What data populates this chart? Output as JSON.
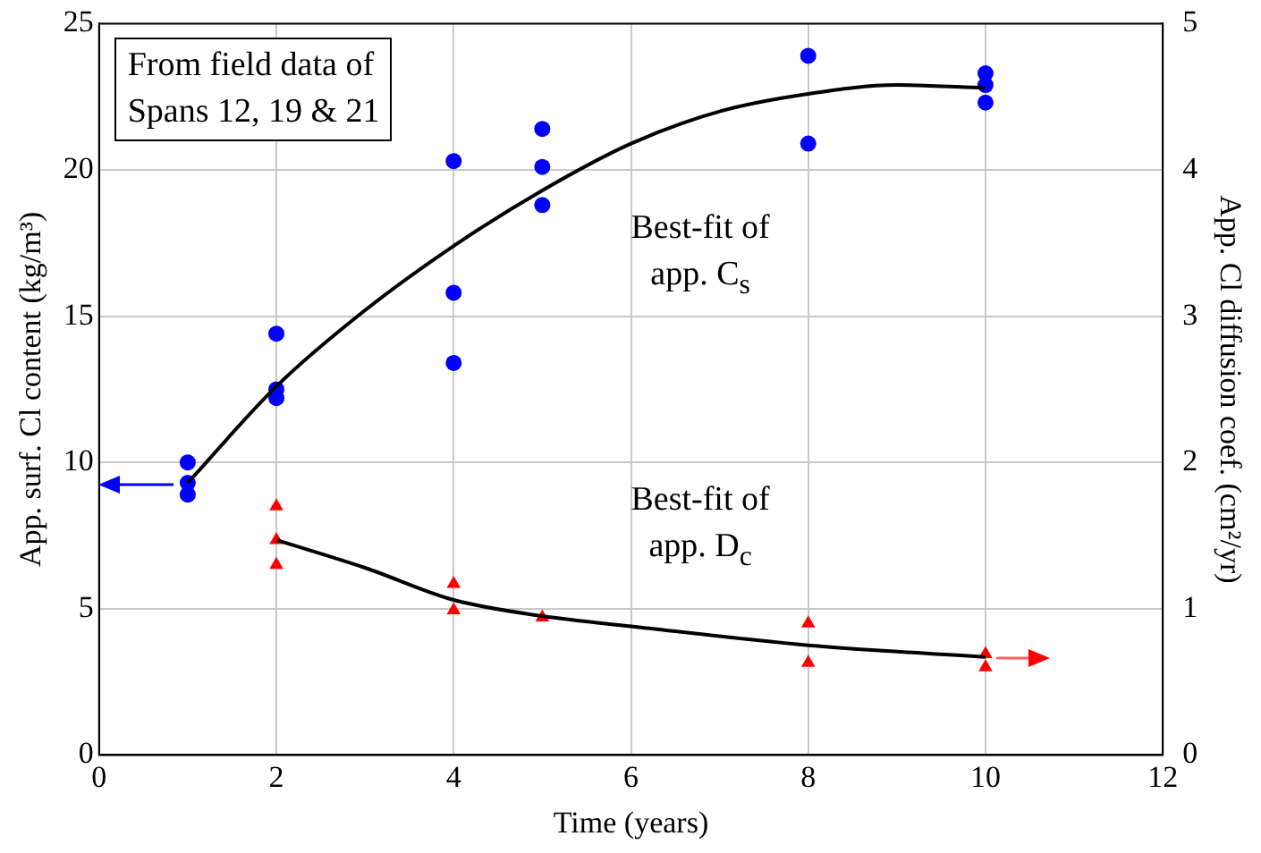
{
  "chart_data": {
    "type": "scatter",
    "xlabel": "Time (years)",
    "ylabel": "App. surf. Cl content (kg/m³)",
    "y2label": "App. Cl diffusion coef. (cm²/yr)",
    "xlim": [
      0,
      12
    ],
    "xticks": [
      0,
      2,
      4,
      6,
      8,
      10,
      12
    ],
    "ylim": [
      0,
      25
    ],
    "yticks": [
      0,
      5,
      10,
      15,
      20,
      25
    ],
    "y2lim": [
      0,
      5
    ],
    "y2ticks": [
      0,
      1,
      2,
      3,
      4,
      5
    ],
    "grid": true,
    "legend": false,
    "annotations": [
      "From field data of\nSpans 12, 19 & 21",
      "Best-fit of\napp. C$_{s}$",
      "Best-fit of\napp. D$_{c}$"
    ],
    "series": [
      {
        "color": "#0000ff",
        "marker": "circle",
        "x": [
          1,
          1,
          1,
          2,
          2,
          2,
          4,
          4,
          4,
          5,
          5,
          5,
          8,
          8,
          10,
          10,
          10
        ],
        "values": [
          10.0,
          9.3,
          8.9,
          14.4,
          12.5,
          12.2,
          20.3,
          15.8,
          13.4,
          21.4,
          20.1,
          18.8,
          23.9,
          20.9,
          23.3,
          22.9,
          22.3
        ]
      },
      {
        "type": "line",
        "color": "#000000",
        "marker": "none",
        "x": [
          1,
          2,
          3,
          4,
          5,
          6,
          7,
          8,
          9,
          10
        ],
        "values": [
          9.3,
          12.6,
          15.2,
          17.4,
          19.3,
          20.9,
          22.0,
          22.6,
          22.9,
          22.8
        ]
      },
      {
        "axis": "y2",
        "color": "#ff0000",
        "marker": "triangle",
        "x": [
          2,
          2,
          2,
          4,
          4,
          5,
          8,
          8,
          10,
          10
        ],
        "values": [
          1.7,
          1.47,
          1.3,
          1.17,
          0.99,
          0.94,
          0.9,
          0.63,
          0.69,
          0.6
        ]
      },
      {
        "type": "line",
        "axis": "y2",
        "color": "#000000",
        "marker": "none",
        "x": [
          2,
          3,
          4,
          5,
          6,
          8,
          10
        ],
        "values": [
          1.47,
          1.28,
          1.06,
          0.95,
          0.88,
          0.75,
          0.67
        ]
      }
    ]
  }
}
